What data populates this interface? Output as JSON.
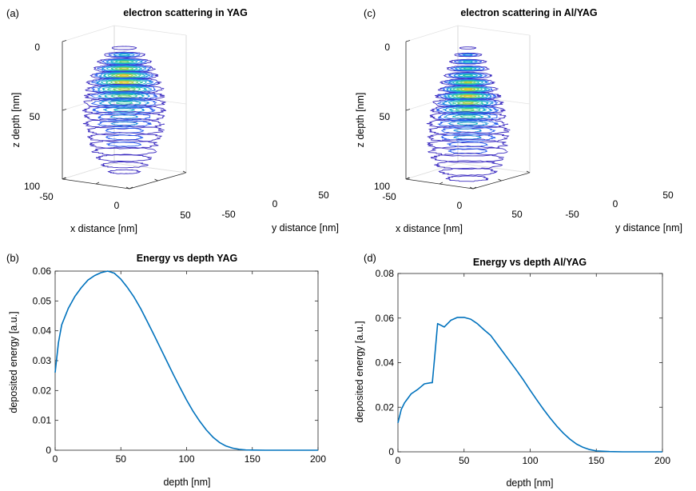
{
  "chart_data": [
    {
      "panel": "(a)",
      "type": "contour3d",
      "title": "electron scattering in YAG",
      "xlabel": "x distance [nm]",
      "ylabel": "y distance [nm]",
      "zlabel": "z depth [nm]",
      "x_ticks": [
        "-50",
        "0",
        "50"
      ],
      "y_ticks": [
        "-50",
        "0",
        "50"
      ],
      "z_ticks": [
        "0",
        "50",
        "100"
      ],
      "slices": [
        {
          "z": 0,
          "r": 18,
          "n": 1
        },
        {
          "z": 5,
          "r": 30,
          "n": 4
        },
        {
          "z": 10,
          "r": 38,
          "n": 6
        },
        {
          "z": 15,
          "r": 44,
          "n": 7
        },
        {
          "z": 20,
          "r": 48,
          "n": 8
        },
        {
          "z": 25,
          "r": 52,
          "n": 8
        },
        {
          "z": 30,
          "r": 55,
          "n": 7
        },
        {
          "z": 35,
          "r": 56,
          "n": 6
        },
        {
          "z": 40,
          "r": 58,
          "n": 5
        },
        {
          "z": 45,
          "r": 58,
          "n": 4
        },
        {
          "z": 50,
          "r": 57,
          "n": 3
        },
        {
          "z": 55,
          "r": 56,
          "n": 3
        },
        {
          "z": 60,
          "r": 54,
          "n": 2
        },
        {
          "z": 65,
          "r": 52,
          "n": 2
        },
        {
          "z": 70,
          "r": 48,
          "n": 2
        },
        {
          "z": 75,
          "r": 44,
          "n": 1
        },
        {
          "z": 80,
          "r": 38,
          "n": 1
        },
        {
          "z": 85,
          "r": 32,
          "n": 1
        },
        {
          "z": 90,
          "r": 22,
          "n": 1
        }
      ]
    },
    {
      "panel": "(c)",
      "type": "contour3d",
      "title": "electron scattering in Al/YAG",
      "xlabel": "x distance [nm]",
      "ylabel": "y distance [nm]",
      "zlabel": "z depth [nm]",
      "x_ticks": [
        "-50",
        "0",
        "50"
      ],
      "y_ticks": [
        "-50",
        "0",
        "50"
      ],
      "z_ticks": [
        "0",
        "50",
        "100"
      ],
      "slices": [
        {
          "z": 0,
          "r": 12,
          "n": 1
        },
        {
          "z": 5,
          "r": 20,
          "n": 3
        },
        {
          "z": 10,
          "r": 26,
          "n": 4
        },
        {
          "z": 15,
          "r": 30,
          "n": 5
        },
        {
          "z": 20,
          "r": 34,
          "n": 5
        },
        {
          "z": 25,
          "r": 38,
          "n": 7
        },
        {
          "z": 30,
          "r": 42,
          "n": 8
        },
        {
          "z": 35,
          "r": 46,
          "n": 8
        },
        {
          "z": 40,
          "r": 50,
          "n": 7
        },
        {
          "z": 45,
          "r": 52,
          "n": 6
        },
        {
          "z": 50,
          "r": 54,
          "n": 5
        },
        {
          "z": 55,
          "r": 56,
          "n": 4
        },
        {
          "z": 60,
          "r": 57,
          "n": 3
        },
        {
          "z": 65,
          "r": 57,
          "n": 3
        },
        {
          "z": 70,
          "r": 56,
          "n": 2
        },
        {
          "z": 75,
          "r": 54,
          "n": 2
        },
        {
          "z": 80,
          "r": 50,
          "n": 1
        },
        {
          "z": 85,
          "r": 46,
          "n": 1
        },
        {
          "z": 90,
          "r": 40,
          "n": 1
        },
        {
          "z": 95,
          "r": 30,
          "n": 1
        }
      ]
    },
    {
      "panel": "(b)",
      "type": "line",
      "title": "Energy vs depth YAG",
      "xlabel": "depth [nm]",
      "ylabel": "deposited energy [a.u.]",
      "xlim": [
        0,
        200
      ],
      "ylim": [
        0,
        0.06
      ],
      "x_ticks": [
        0,
        50,
        100,
        150,
        200
      ],
      "y_ticks": [
        0,
        0.01,
        0.02,
        0.03,
        0.04,
        0.05,
        0.06
      ],
      "series": [
        {
          "color": "#0072BD",
          "x": [
            0,
            2.5,
            5,
            10,
            15,
            20,
            25,
            30,
            35,
            40,
            45,
            50,
            55,
            60,
            65,
            70,
            75,
            80,
            85,
            90,
            95,
            100,
            105,
            110,
            115,
            120,
            125,
            130,
            135,
            140,
            145,
            150,
            160,
            170,
            180,
            190,
            200
          ],
          "y": [
            0.026,
            0.036,
            0.042,
            0.0475,
            0.0515,
            0.0545,
            0.057,
            0.0585,
            0.0595,
            0.06,
            0.0593,
            0.0573,
            0.0545,
            0.0513,
            0.0475,
            0.0432,
            0.0388,
            0.0343,
            0.0298,
            0.0253,
            0.021,
            0.0168,
            0.013,
            0.0097,
            0.0068,
            0.0044,
            0.0026,
            0.0014,
            0.0007,
            0.0003,
            0.0001,
            5e-05,
            0,
            0,
            0,
            0,
            0
          ]
        }
      ]
    },
    {
      "panel": "(d)",
      "type": "line",
      "title": "Energy vs depth Al/YAG",
      "xlabel": "depth [nm]",
      "ylabel": "deposited energy [a.u.]",
      "xlim": [
        0,
        200
      ],
      "ylim": [
        0,
        0.08
      ],
      "x_ticks": [
        0,
        50,
        100,
        150,
        200
      ],
      "y_ticks": [
        0,
        0.02,
        0.04,
        0.06,
        0.08
      ],
      "series": [
        {
          "color": "#0072BD",
          "x": [
            0,
            2.5,
            5,
            10,
            15,
            20,
            25,
            26,
            28,
            30,
            35,
            40,
            45,
            50,
            55,
            60,
            65,
            70,
            75,
            80,
            85,
            90,
            95,
            100,
            105,
            110,
            115,
            120,
            125,
            130,
            135,
            140,
            145,
            150,
            160,
            170,
            180,
            190,
            200
          ],
          "y": [
            0.013,
            0.019,
            0.022,
            0.026,
            0.028,
            0.0305,
            0.031,
            0.031,
            0.044,
            0.0575,
            0.056,
            0.059,
            0.0603,
            0.0603,
            0.0595,
            0.0575,
            0.0548,
            0.0523,
            0.0483,
            0.0443,
            0.0403,
            0.0363,
            0.0321,
            0.0276,
            0.0233,
            0.0191,
            0.0152,
            0.0116,
            0.0084,
            0.0057,
            0.0035,
            0.002,
            0.001,
            0.0004,
            0.0001,
            0,
            0,
            0,
            0
          ]
        }
      ]
    }
  ]
}
